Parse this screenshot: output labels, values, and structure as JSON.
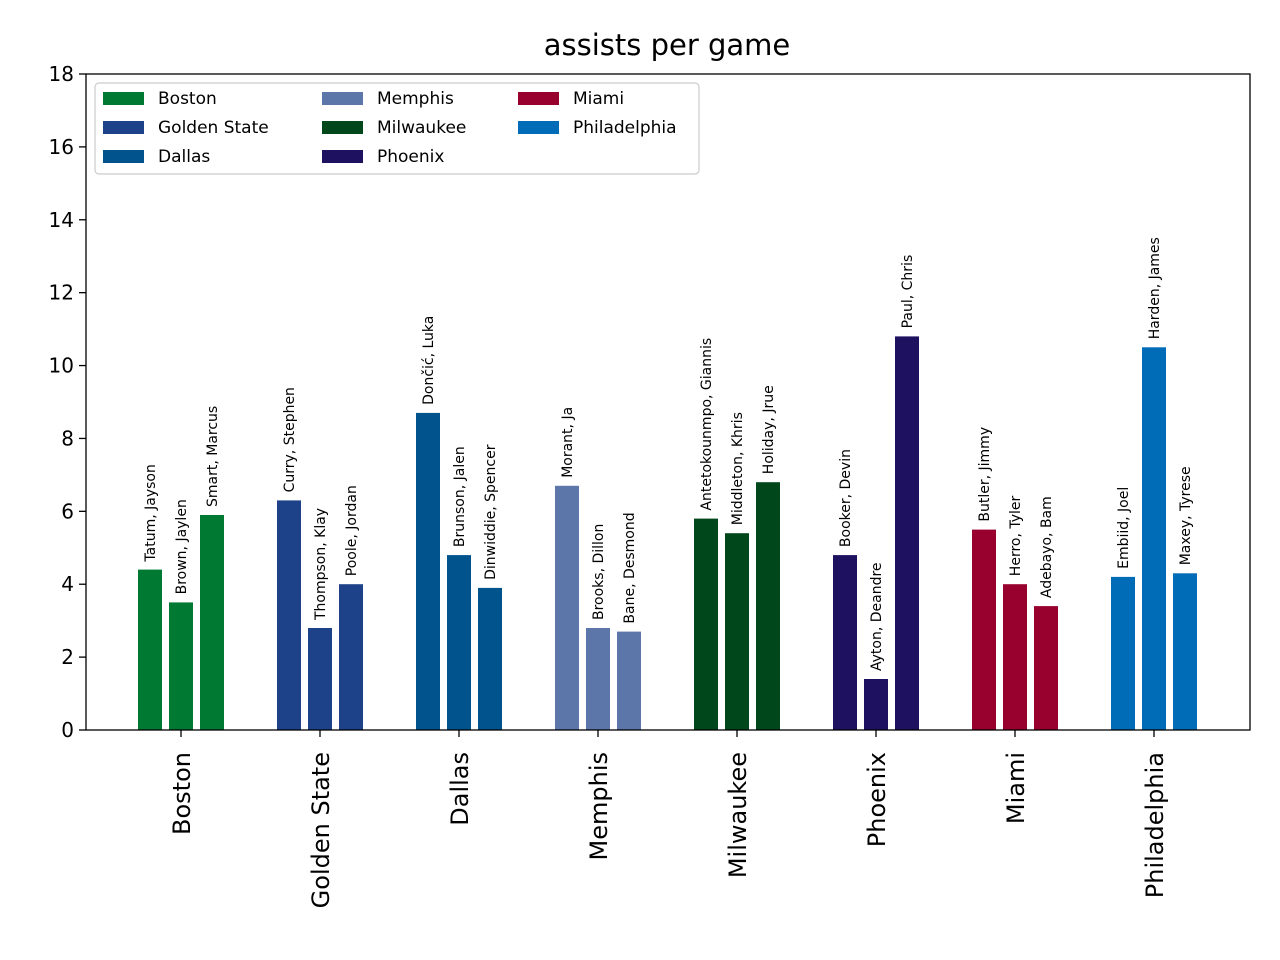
{
  "chart_data": {
    "type": "bar",
    "title": "assists per game",
    "xlabel": "",
    "ylabel": "",
    "ylim": [
      0,
      18
    ],
    "yticks": [
      0,
      2,
      4,
      6,
      8,
      10,
      12,
      14,
      16,
      18
    ],
    "grid": false,
    "legend_position": "top-left",
    "groups": [
      {
        "team": "Boston",
        "color": "#007A33",
        "players": [
          {
            "name": "Tatum, Jayson",
            "value": 4.4
          },
          {
            "name": "Brown, Jaylen",
            "value": 3.5
          },
          {
            "name": "Smart, Marcus",
            "value": 5.9
          }
        ]
      },
      {
        "team": "Golden State",
        "color": "#1D428A",
        "players": [
          {
            "name": "Curry, Stephen",
            "value": 6.3
          },
          {
            "name": "Thompson, Klay",
            "value": 2.8
          },
          {
            "name": "Poole, Jordan",
            "value": 4.0
          }
        ]
      },
      {
        "team": "Dallas",
        "color": "#00538C",
        "players": [
          {
            "name": "Dončić, Luka",
            "value": 8.7
          },
          {
            "name": "Brunson, Jalen",
            "value": 4.8
          },
          {
            "name": "Dinwiddie, Spencer",
            "value": 3.9
          }
        ]
      },
      {
        "team": "Memphis",
        "color": "#5D76A9",
        "players": [
          {
            "name": "Morant, Ja",
            "value": 6.7
          },
          {
            "name": "Brooks, Dillon",
            "value": 2.8
          },
          {
            "name": "Bane, Desmond",
            "value": 2.7
          }
        ]
      },
      {
        "team": "Milwaukee",
        "color": "#00471B",
        "players": [
          {
            "name": "Antetokounmpo, Giannis",
            "value": 5.8
          },
          {
            "name": "Middleton, Khris",
            "value": 5.4
          },
          {
            "name": "Holiday, Jrue",
            "value": 6.8
          }
        ]
      },
      {
        "team": "Phoenix",
        "color": "#1D1160",
        "players": [
          {
            "name": "Booker, Devin",
            "value": 4.8
          },
          {
            "name": "Ayton, Deandre",
            "value": 1.4
          },
          {
            "name": "Paul, Chris",
            "value": 10.8
          }
        ]
      },
      {
        "team": "Miami",
        "color": "#98002E",
        "players": [
          {
            "name": "Butler, Jimmy",
            "value": 5.5
          },
          {
            "name": "Herro, Tyler",
            "value": 4.0
          },
          {
            "name": "Adebayo, Bam",
            "value": 3.4
          }
        ]
      },
      {
        "team": "Philadelphia",
        "color": "#006BB6",
        "players": [
          {
            "name": "Embiid, Joel",
            "value": 4.2
          },
          {
            "name": "Harden, James",
            "value": 10.5
          },
          {
            "name": "Maxey, Tyrese",
            "value": 4.3
          }
        ]
      }
    ]
  }
}
